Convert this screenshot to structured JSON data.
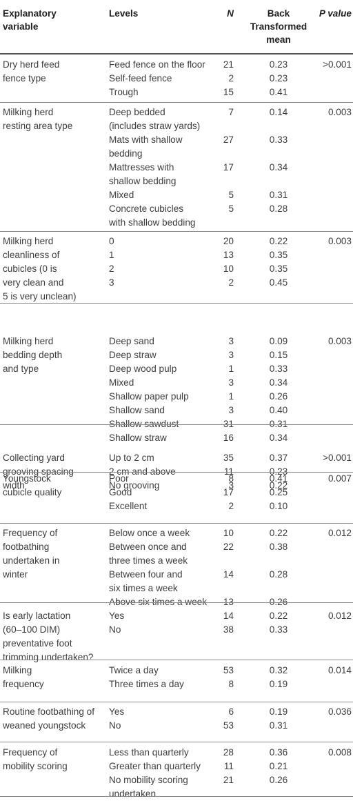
{
  "headers": {
    "variable": [
      "Explanatory",
      "variable"
    ],
    "levels": "Levels",
    "n": "N",
    "mean": [
      "Back",
      "Transformed",
      "mean"
    ],
    "p": "P value"
  },
  "groups": [
    {
      "variable": [
        "Dry herd feed",
        "fence type"
      ],
      "p": ">0.001",
      "rows": [
        {
          "level": [
            "Feed fence on the floor"
          ],
          "n": "21",
          "mean": "0.23"
        },
        {
          "level": [
            "Self-feed fence"
          ],
          "n": "2",
          "mean": "0.23"
        },
        {
          "level": [
            "Trough"
          ],
          "n": "15",
          "mean": "0.41"
        }
      ]
    },
    {
      "variable": [
        "Milking herd",
        "resting area type"
      ],
      "p": "0.003",
      "rows": [
        {
          "level": [
            "Deep bedded",
            "(includes straw yards)"
          ],
          "n": "7",
          "mean": "0.14"
        },
        {
          "level": [
            "Mats with shallow",
            "bedding"
          ],
          "n": "27",
          "mean": "0.33"
        },
        {
          "level": [
            "Mattresses with",
            "shallow bedding"
          ],
          "n": "17",
          "mean": "0.34"
        },
        {
          "level": [
            "Mixed"
          ],
          "n": "5",
          "mean": "0.31"
        },
        {
          "level": [
            "Concrete cubicles",
            "with shallow bedding"
          ],
          "n": "5",
          "mean": "0.28"
        }
      ]
    },
    {
      "variable": [
        "Milking herd",
        "cleanliness of",
        "cubicles (0 is",
        "very clean and",
        "5 is very unclean)"
      ],
      "p": "0.003",
      "rows": [
        {
          "level": [
            "0"
          ],
          "n": "20",
          "mean": "0.22"
        },
        {
          "level": [
            "1"
          ],
          "n": "13",
          "mean": "0.35"
        },
        {
          "level": [
            "2"
          ],
          "n": "10",
          "mean": "0.35"
        },
        {
          "level": [
            "3"
          ],
          "n": "2",
          "mean": "0.45"
        }
      ]
    },
    {
      "variable": [
        "Milking herd",
        "bedding depth",
        "and type"
      ],
      "p": "0.003",
      "rows": [
        {
          "level": [
            "Deep sand"
          ],
          "n": "3",
          "mean": "0.09"
        },
        {
          "level": [
            "Deep straw"
          ],
          "n": "3",
          "mean": "0.15"
        },
        {
          "level": [
            "Deep wood pulp"
          ],
          "n": "1",
          "mean": "0.33"
        },
        {
          "level": [
            "Mixed"
          ],
          "n": "3",
          "mean": "0.34"
        },
        {
          "level": [
            "Shallow paper pulp"
          ],
          "n": "1",
          "mean": "0.26"
        },
        {
          "level": [
            "Shallow sand"
          ],
          "n": "3",
          "mean": "0.40"
        },
        {
          "level": [
            "Shallow sawdust"
          ],
          "n": "31",
          "mean": "0.31"
        },
        {
          "level": [
            "Shallow straw"
          ],
          "n": "16",
          "mean": "0.34"
        }
      ]
    },
    {
      "variable": [
        "Collecting yard",
        "grooving spacing",
        "width"
      ],
      "p": ">0.001",
      "rows": [
        {
          "level": [
            "Up to 2 cm"
          ],
          "n": "35",
          "mean": "0.37"
        },
        {
          "level": [
            "2 cm and above"
          ],
          "n": "11",
          "mean": "0.23"
        },
        {
          "level": [
            "No grooving"
          ],
          "n": "3",
          "mean": "0.22"
        }
      ]
    },
    {
      "variable": [
        "Youngstock",
        "cubicle quality"
      ],
      "p": "0.007",
      "rows": [
        {
          "level": [
            "Poor"
          ],
          "n": "8",
          "mean": "0.41"
        },
        {
          "level": [
            "Good"
          ],
          "n": "17",
          "mean": "0.25"
        },
        {
          "level": [
            "Excellent"
          ],
          "n": "2",
          "mean": "0.10"
        }
      ]
    },
    {
      "variable": [
        "Frequency of",
        "footbathing",
        "undertaken in",
        "winter"
      ],
      "p": "0.012",
      "rows": [
        {
          "level": [
            "Below once a week"
          ],
          "n": "10",
          "mean": "0.22"
        },
        {
          "level": [
            "Between once and",
            "three times a week"
          ],
          "n": "22",
          "mean": "0.38"
        },
        {
          "level": [
            "Between four and",
            "six times a week"
          ],
          "n": "14",
          "mean": "0.28"
        },
        {
          "level": [
            "Above six times a week"
          ],
          "n": "13",
          "mean": "0.26"
        }
      ]
    },
    {
      "variable": [
        "Is early lactation",
        "(60–100 DIM)",
        "preventative foot",
        "trimming undertaken?"
      ],
      "p": "0.012",
      "rows": [
        {
          "level": [
            "Yes"
          ],
          "n": "14",
          "mean": "0.22"
        },
        {
          "level": [
            "No"
          ],
          "n": "38",
          "mean": "0.33"
        }
      ]
    },
    {
      "variable": [
        "Milking",
        "frequency"
      ],
      "p": "0.014",
      "rows": [
        {
          "level": [
            "Twice a day"
          ],
          "n": "53",
          "mean": "0.32"
        },
        {
          "level": [
            "Three times a day"
          ],
          "n": "8",
          "mean": "0.19"
        }
      ]
    },
    {
      "variable": [
        "Routine footbathing of",
        "weaned youngstock"
      ],
      "p": "0.036",
      "rows": [
        {
          "level": [
            "Yes"
          ],
          "n": "6",
          "mean": "0.19"
        },
        {
          "level": [
            "No"
          ],
          "n": "53",
          "mean": "0.31"
        }
      ]
    },
    {
      "variable": [
        "Frequency of",
        "mobility scoring"
      ],
      "p": "0.008",
      "rows": [
        {
          "level": [
            "Less than quarterly"
          ],
          "n": "28",
          "mean": "0.36"
        },
        {
          "level": [
            "Greater than quarterly"
          ],
          "n": "11",
          "mean": "0.21"
        },
        {
          "level": [
            "No mobility scoring",
            "undertaken"
          ],
          "n": "21",
          "mean": "0.26"
        }
      ]
    }
  ]
}
